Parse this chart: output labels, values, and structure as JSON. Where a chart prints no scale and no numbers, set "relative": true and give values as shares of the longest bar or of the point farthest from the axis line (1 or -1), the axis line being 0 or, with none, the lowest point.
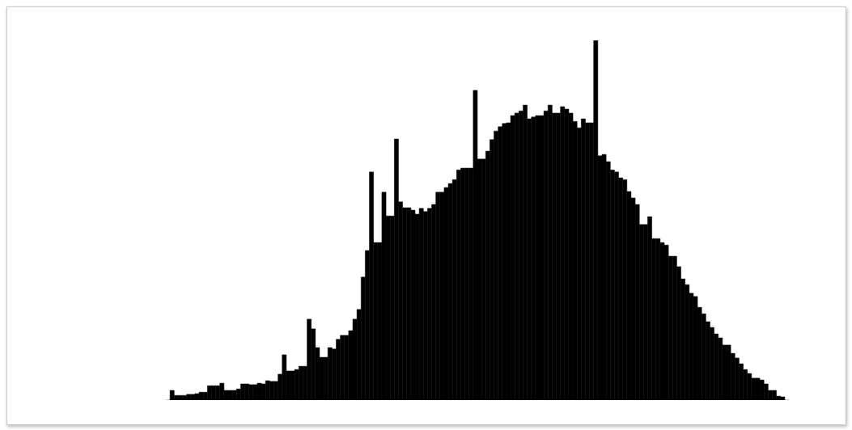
{
  "chart_data": {
    "type": "bar",
    "relative": true,
    "color": "#000000",
    "categories": [
      null,
      null,
      null,
      null,
      null,
      null,
      null,
      null,
      null,
      null,
      null,
      null,
      null,
      null,
      null,
      null,
      null,
      null,
      null,
      null,
      null,
      null,
      null,
      null,
      null,
      null,
      null,
      null,
      null,
      null,
      null,
      null,
      null,
      null,
      null,
      null,
      null,
      null,
      null,
      null,
      null,
      null,
      null,
      null,
      null,
      null,
      null,
      null,
      null,
      null,
      null,
      null,
      null,
      null,
      null,
      null,
      null,
      null,
      null,
      null,
      null,
      null,
      null,
      null,
      null,
      null,
      null,
      null,
      null,
      null,
      null,
      null,
      null,
      null,
      null,
      null,
      null,
      null,
      null,
      null,
      null,
      null,
      null,
      null,
      null,
      null,
      null,
      null,
      null,
      null,
      null,
      null,
      null,
      null,
      null,
      null,
      null,
      null,
      null,
      null,
      null,
      null,
      null,
      null,
      null,
      null,
      null,
      null,
      null,
      null,
      null,
      null,
      null,
      null,
      null,
      null,
      null,
      null,
      null,
      null,
      null,
      null,
      null,
      null,
      null,
      null,
      null,
      null,
      null,
      null,
      null,
      null,
      null,
      null,
      null,
      null,
      null,
      null,
      null,
      null,
      null,
      null,
      null,
      null,
      null,
      null,
      null,
      null
    ],
    "values": [
      0.027,
      0.013,
      0.013,
      0.013,
      0.016,
      0.016,
      0.018,
      0.022,
      0.022,
      0.04,
      0.04,
      0.04,
      0.047,
      0.027,
      0.027,
      0.027,
      0.031,
      0.045,
      0.045,
      0.043,
      0.043,
      0.047,
      0.045,
      0.054,
      0.052,
      0.052,
      0.072,
      0.126,
      0.081,
      0.081,
      0.085,
      0.094,
      0.094,
      0.225,
      0.198,
      0.146,
      0.119,
      0.119,
      0.146,
      0.142,
      0.169,
      0.18,
      0.18,
      0.193,
      0.225,
      0.252,
      0.342,
      0.416,
      0.634,
      0.438,
      0.438,
      0.578,
      0.512,
      0.512,
      0.726,
      0.551,
      0.535,
      0.535,
      0.528,
      0.517,
      0.533,
      0.524,
      0.533,
      0.544,
      0.578,
      0.578,
      0.591,
      0.602,
      0.613,
      0.64,
      0.645,
      0.645,
      0.645,
      0.861,
      0.67,
      0.67,
      0.692,
      0.724,
      0.748,
      0.76,
      0.769,
      0.771,
      0.791,
      0.798,
      0.804,
      0.82,
      0.782,
      0.787,
      0.791,
      0.791,
      0.804,
      0.82,
      0.798,
      0.798,
      0.816,
      0.809,
      0.798,
      0.775,
      0.757,
      0.782,
      0.771,
      0.771,
      1,
      0.679,
      0.683,
      0.663,
      0.64,
      0.634,
      0.618,
      0.613,
      0.58,
      0.562,
      0.544,
      0.488,
      0.488,
      0.51,
      0.449,
      0.449,
      0.438,
      0.431,
      0.4,
      0.4,
      0.371,
      0.337,
      0.321,
      0.297,
      0.288,
      0.258,
      0.24,
      0.218,
      0.202,
      0.184,
      0.173,
      0.153,
      0.153,
      0.13,
      0.117,
      0.101,
      0.085,
      0.074,
      0.061,
      0.061,
      0.056,
      0.045,
      0.027,
      0.027,
      0.011,
      0.009
    ]
  }
}
